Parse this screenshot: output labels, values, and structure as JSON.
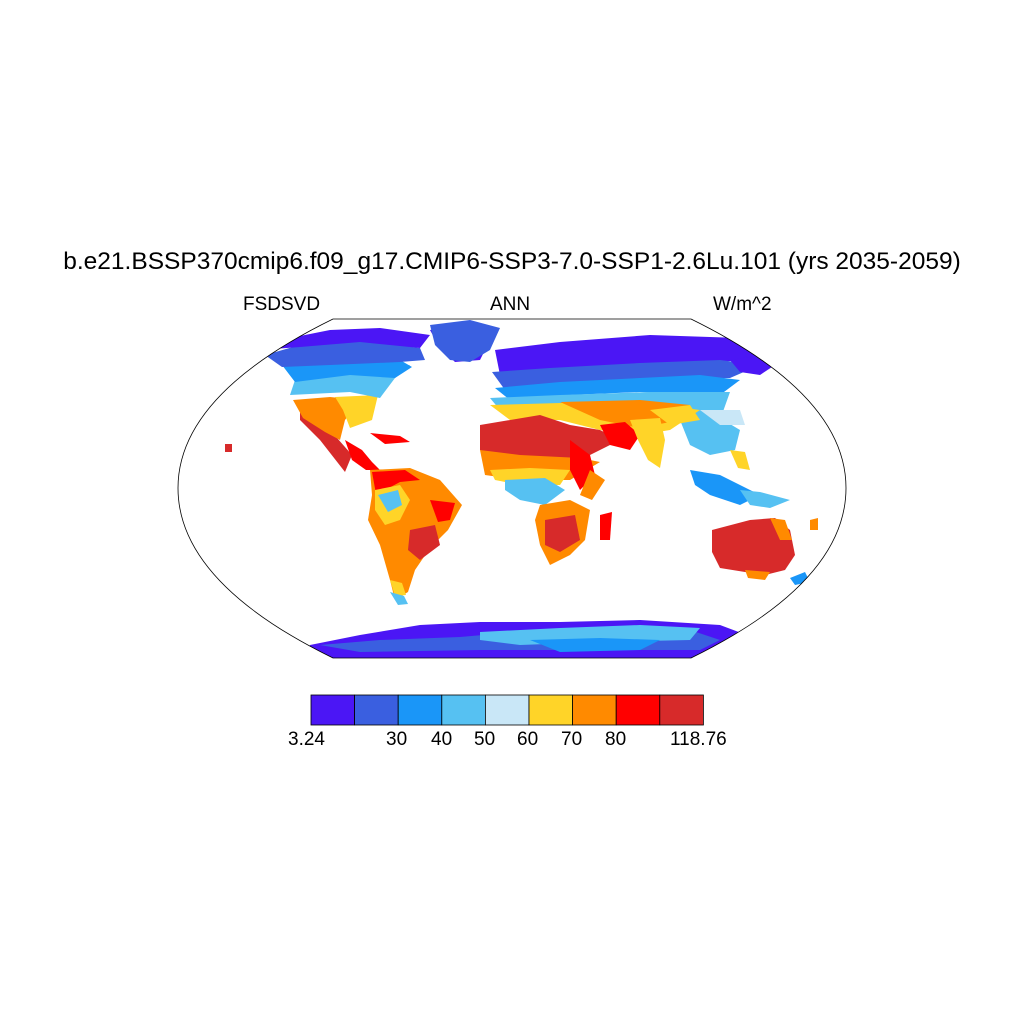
{
  "title": "b.e21.BSSP370cmip6.f09_g17.CMIP6-SSP3-7.0-SSP1-2.6Lu.101 (yrs 2035-2059)",
  "left_label": "FSDSVD",
  "center_label": "ANN",
  "right_label": "W/m^2",
  "colorbar": {
    "colors": [
      "#4b16f5",
      "#3a5fe0",
      "#1a96f8",
      "#56c1f2",
      "#c9e7f7",
      "#ffd428",
      "#ff8a00",
      "#ff0000",
      "#d72a2a"
    ],
    "labels": [
      "3.24",
      "30",
      "40",
      "50",
      "60",
      "70",
      "80",
      "118.76"
    ]
  }
}
